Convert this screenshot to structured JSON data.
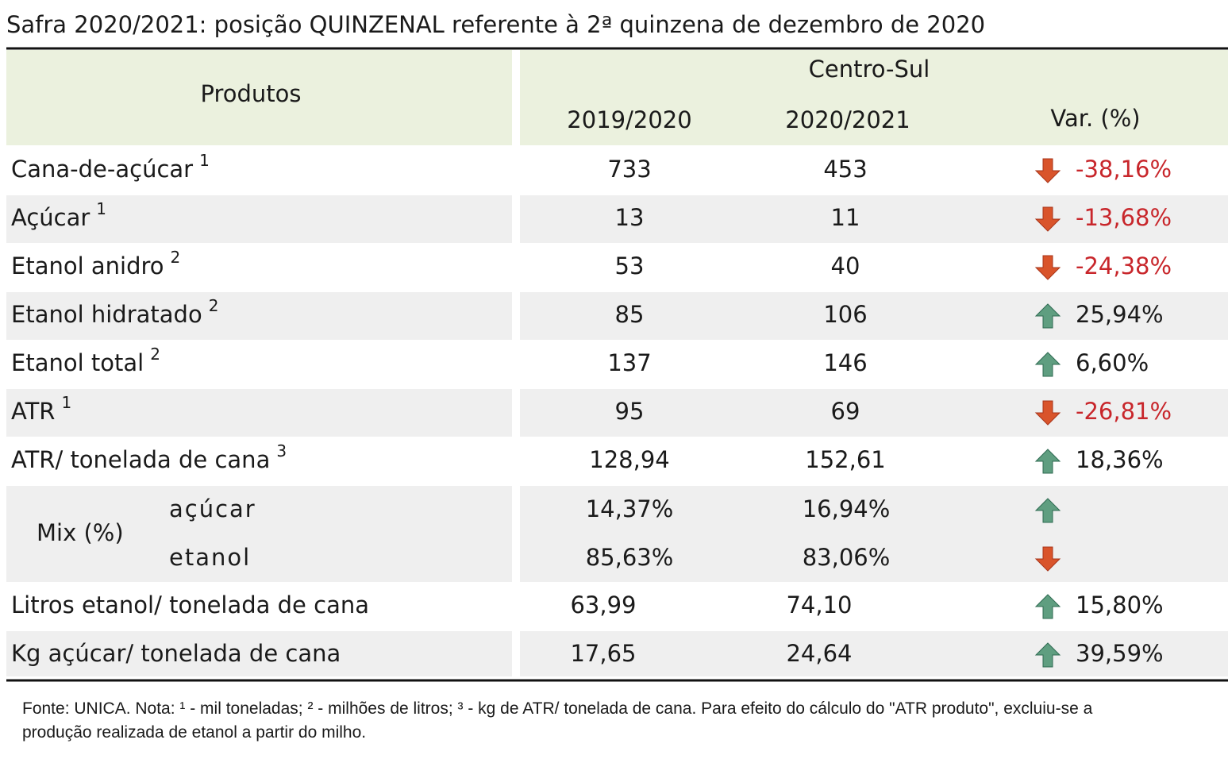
{
  "title": "Safra 2020/2021: posição QUINZENAL referente à 2ª quinzena de dezembro de 2020",
  "header": {
    "products": "Produtos",
    "region": "Centro-Sul",
    "col1": "2019/2020",
    "col2": "2020/2021",
    "var": "Var. (%)"
  },
  "rows": [
    {
      "label": "Cana-de-açúcar",
      "note": "1",
      "v1": "733",
      "v2": "453",
      "var": "-38,16%",
      "trend": "down"
    },
    {
      "label": "Açúcar",
      "note": "1",
      "v1": "13",
      "v2": "11",
      "var": "-13,68%",
      "trend": "down"
    },
    {
      "label": "Etanol anidro",
      "note": "2",
      "v1": "53",
      "v2": "40",
      "var": "-24,38%",
      "trend": "down"
    },
    {
      "label": "Etanol hidratado",
      "note": "2",
      "v1": "85",
      "v2": "106",
      "var": "25,94%",
      "trend": "up"
    },
    {
      "label": "Etanol total",
      "note": "2",
      "v1": "137",
      "v2": "146",
      "var": "6,60%",
      "trend": "up"
    },
    {
      "label": "ATR",
      "note": "1",
      "v1": "95",
      "v2": "69",
      "var": "-26,81%",
      "trend": "down"
    },
    {
      "label": "ATR/ tonelada de cana",
      "note": "3",
      "v1": "128,94",
      "v2": "152,61",
      "var": "18,36%",
      "trend": "up"
    },
    {
      "label": "Mix (%)",
      "sub": [
        {
          "label": "açúcar",
          "v1": "14,37%",
          "v2": "16,94%",
          "trend": "up"
        },
        {
          "label": "etanol",
          "v1": "85,63%",
          "v2": "83,06%",
          "trend": "down"
        }
      ]
    },
    {
      "label": "Litros etanol/ tonelada de cana",
      "v1": "63,99",
      "v2": "74,10",
      "var": "15,80%",
      "trend": "up"
    },
    {
      "label": "Kg açúcar/ tonelada de cana",
      "v1": "17,65",
      "v2": "24,64",
      "var": "39,59%",
      "trend": "up"
    }
  ],
  "footer": "Fonte: UNICA. Nota: ¹ - mil toneladas; ² - milhões de litros; ³ - kg de ATR/ tonelada de cana. Para efeito do cálculo do \"ATR produto\", excluiu-se a produção realizada de etanol a partir do milho."
}
